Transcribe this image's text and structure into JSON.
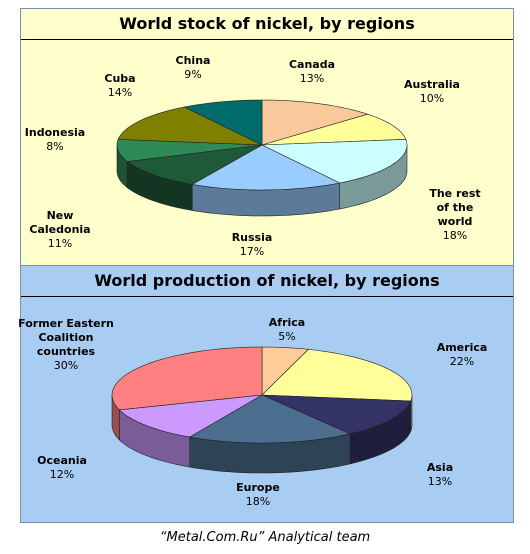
{
  "chart_data": [
    {
      "type": "pie",
      "title": "World stock of nickel, by regions",
      "categories": [
        "Canada",
        "Australia",
        "The rest of the world",
        "Russia",
        "New Caledonia",
        "Indonesia",
        "Cuba",
        "China"
      ],
      "values": [
        13,
        10,
        18,
        17,
        11,
        8,
        14,
        9
      ],
      "value_labels": [
        "13%",
        "10%",
        "18%",
        "17%",
        "11%",
        "8%",
        "14%",
        "9%"
      ],
      "colors": [
        "#f9c89b",
        "#ffff99",
        "#ccffff",
        "#99ccff",
        "#1f5a38",
        "#2e8b57",
        "#808000",
        "#006b6b"
      ]
    },
    {
      "type": "pie",
      "title": "World production of nickel, by regions",
      "categories": [
        "Africa",
        "America",
        "Asia",
        "Europe",
        "Oceania",
        "Former Eastern Coalition countries"
      ],
      "values": [
        5,
        22,
        13,
        18,
        12,
        30
      ],
      "value_labels": [
        "5%",
        "22%",
        "13%",
        "18%",
        "12%",
        "30%"
      ],
      "colors": [
        "#ffcc99",
        "#ffff99",
        "#333366",
        "#4d6f8f",
        "#cc99ff",
        "#ff8080"
      ]
    }
  ],
  "caption": "“Metal.Com.Ru” Analytical team"
}
